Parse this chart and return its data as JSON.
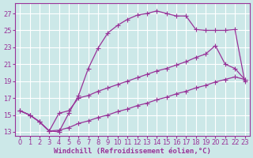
{
  "background_color": "#cce8e8",
  "grid_color": "#aacccc",
  "line_color": "#993399",
  "marker": "+",
  "marker_size": 4,
  "line_width": 0.9,
  "xlabel": "Windchill (Refroidissement éolien,°C)",
  "xlabel_fontsize": 6.5,
  "tick_fontsize": 6,
  "xlim": [
    -0.5,
    23.5
  ],
  "ylim": [
    12.5,
    28.2
  ],
  "xticks": [
    0,
    1,
    2,
    3,
    4,
    5,
    6,
    7,
    8,
    9,
    10,
    11,
    12,
    13,
    14,
    15,
    16,
    17,
    18,
    19,
    20,
    21,
    22,
    23
  ],
  "yticks": [
    13,
    15,
    17,
    19,
    21,
    23,
    25,
    27
  ],
  "series1_x": [
    0,
    1,
    2,
    3,
    4,
    5,
    6,
    7,
    8,
    9,
    10,
    11,
    12,
    13,
    14,
    15,
    16,
    17,
    18,
    19,
    20,
    21,
    22,
    23
  ],
  "series1_y": [
    15.5,
    15.0,
    14.2,
    13.1,
    13.0,
    15.2,
    17.3,
    20.5,
    22.9,
    24.7,
    25.6,
    26.3,
    26.8,
    27.0,
    27.3,
    27.0,
    26.7,
    26.7,
    25.1,
    25.0,
    25.0,
    25.0,
    25.1,
    19.0
  ],
  "series2_x": [
    0,
    1,
    2,
    3,
    4,
    5,
    6,
    7,
    8,
    9,
    10,
    11,
    12,
    13,
    14,
    15,
    16,
    17,
    18,
    19,
    20,
    21,
    22,
    23
  ],
  "series2_y": [
    15.5,
    15.0,
    14.2,
    13.1,
    15.2,
    15.5,
    17.0,
    17.3,
    17.8,
    18.2,
    18.6,
    19.0,
    19.4,
    19.8,
    20.2,
    20.5,
    20.9,
    21.3,
    21.8,
    22.2,
    23.2,
    21.0,
    20.5,
    19.2
  ],
  "series3_x": [
    0,
    1,
    2,
    3,
    4,
    5,
    6,
    7,
    8,
    9,
    10,
    11,
    12,
    13,
    14,
    15,
    16,
    17,
    18,
    19,
    20,
    21,
    22,
    23
  ],
  "series3_y": [
    15.5,
    15.0,
    14.2,
    13.1,
    13.2,
    13.5,
    14.0,
    14.3,
    14.7,
    15.0,
    15.4,
    15.7,
    16.1,
    16.4,
    16.8,
    17.1,
    17.5,
    17.8,
    18.2,
    18.5,
    18.9,
    19.2,
    19.5,
    19.2
  ]
}
